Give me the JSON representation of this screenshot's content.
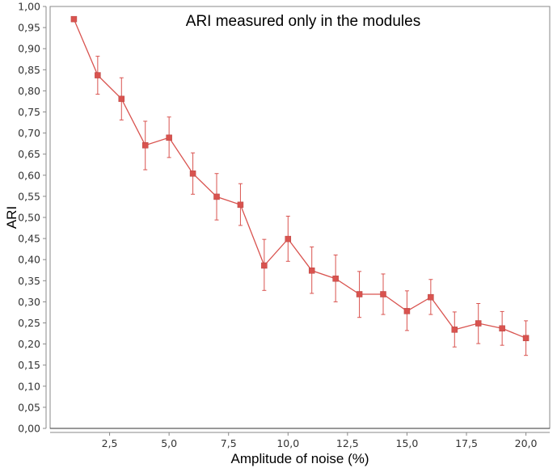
{
  "chart_data": {
    "type": "line",
    "title": "ARI measured only in the modules",
    "xlabel": "Amplitude of noise (%)",
    "ylabel": "ARI",
    "xlim": [
      0,
      21
    ],
    "ylim": [
      0,
      1.0
    ],
    "x_ticks": [
      2.5,
      5.0,
      7.5,
      10.0,
      12.5,
      15.0,
      17.5,
      20.0
    ],
    "x_tick_labels": [
      "2,5",
      "5,0",
      "7,5",
      "10,0",
      "12,5",
      "15,0",
      "17,5",
      "20,0"
    ],
    "y_ticks": [
      0.0,
      0.05,
      0.1,
      0.15,
      0.2,
      0.25,
      0.3,
      0.35,
      0.4,
      0.45,
      0.5,
      0.55,
      0.6,
      0.65,
      0.7,
      0.75,
      0.8,
      0.85,
      0.9,
      0.95,
      1.0
    ],
    "y_tick_labels": [
      "0,00",
      "0,05",
      "0,10",
      "0,15",
      "0,20",
      "0,25",
      "0,30",
      "0,35",
      "0,40",
      "0,45",
      "0,50",
      "0,55",
      "0,60",
      "0,65",
      "0,70",
      "0,75",
      "0,80",
      "0,85",
      "0,90",
      "0,95",
      "1,00"
    ],
    "grid": false,
    "series": [
      {
        "color": "#d9534f",
        "x": [
          1,
          2,
          3,
          4,
          5,
          6,
          7,
          8,
          9,
          10,
          11,
          12,
          13,
          14,
          15,
          16,
          17,
          18,
          19,
          20
        ],
        "y": [
          0.97,
          0.837,
          0.781,
          0.671,
          0.689,
          0.604,
          0.549,
          0.53,
          0.386,
          0.449,
          0.374,
          0.355,
          0.318,
          0.318,
          0.278,
          0.311,
          0.234,
          0.249,
          0.237,
          0.214
        ],
        "err_low": [
          0.97,
          0.792,
          0.731,
          0.613,
          0.642,
          0.555,
          0.494,
          0.481,
          0.327,
          0.396,
          0.32,
          0.3,
          0.263,
          0.27,
          0.232,
          0.27,
          0.193,
          0.201,
          0.197,
          0.173
        ],
        "err_high": [
          0.97,
          0.882,
          0.831,
          0.728,
          0.738,
          0.653,
          0.604,
          0.58,
          0.448,
          0.503,
          0.43,
          0.411,
          0.372,
          0.366,
          0.326,
          0.353,
          0.276,
          0.296,
          0.277,
          0.255
        ]
      }
    ]
  }
}
